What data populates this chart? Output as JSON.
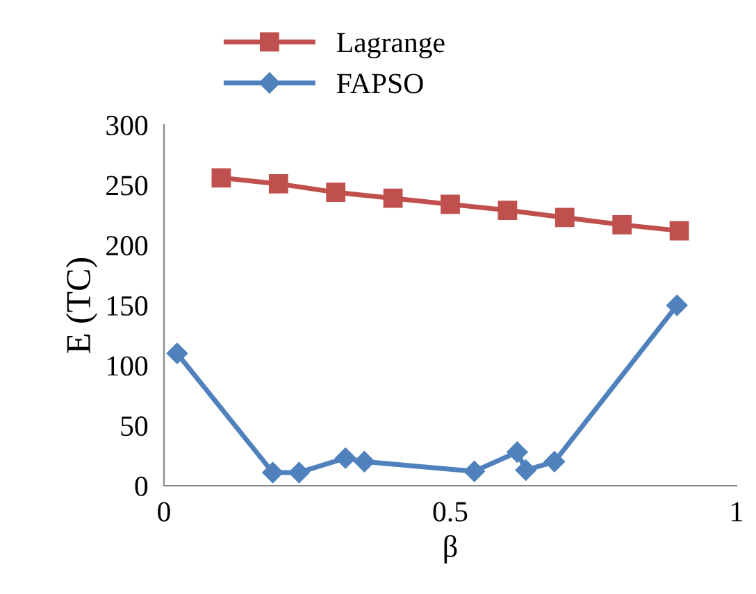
{
  "chart_data": {
    "type": "line",
    "xlabel": "β",
    "ylabel": "E (TC)",
    "xlim": [
      0,
      1
    ],
    "xticks": [
      0,
      0.5,
      1
    ],
    "ylim": [
      0,
      300
    ],
    "yticks": [
      0,
      50,
      100,
      150,
      200,
      250,
      300
    ],
    "grid": false,
    "legend": "top",
    "series": [
      {
        "name": "Lagrange",
        "color": "#c0504d",
        "marker": "square",
        "x": [
          0.1,
          0.2,
          0.3,
          0.4,
          0.5,
          0.6,
          0.7,
          0.8,
          0.9
        ],
        "values": [
          256,
          251,
          244,
          239,
          234,
          229,
          223,
          217,
          212
        ]
      },
      {
        "name": "FAPSO",
        "color": "#4f81bd",
        "marker": "diamond",
        "x": [
          0.023,
          0.19,
          0.236,
          0.317,
          0.35,
          0.542,
          0.617,
          0.632,
          0.682,
          0.896
        ],
        "values": [
          110,
          11,
          11,
          23,
          20,
          12,
          28,
          13,
          20,
          150
        ]
      }
    ]
  }
}
